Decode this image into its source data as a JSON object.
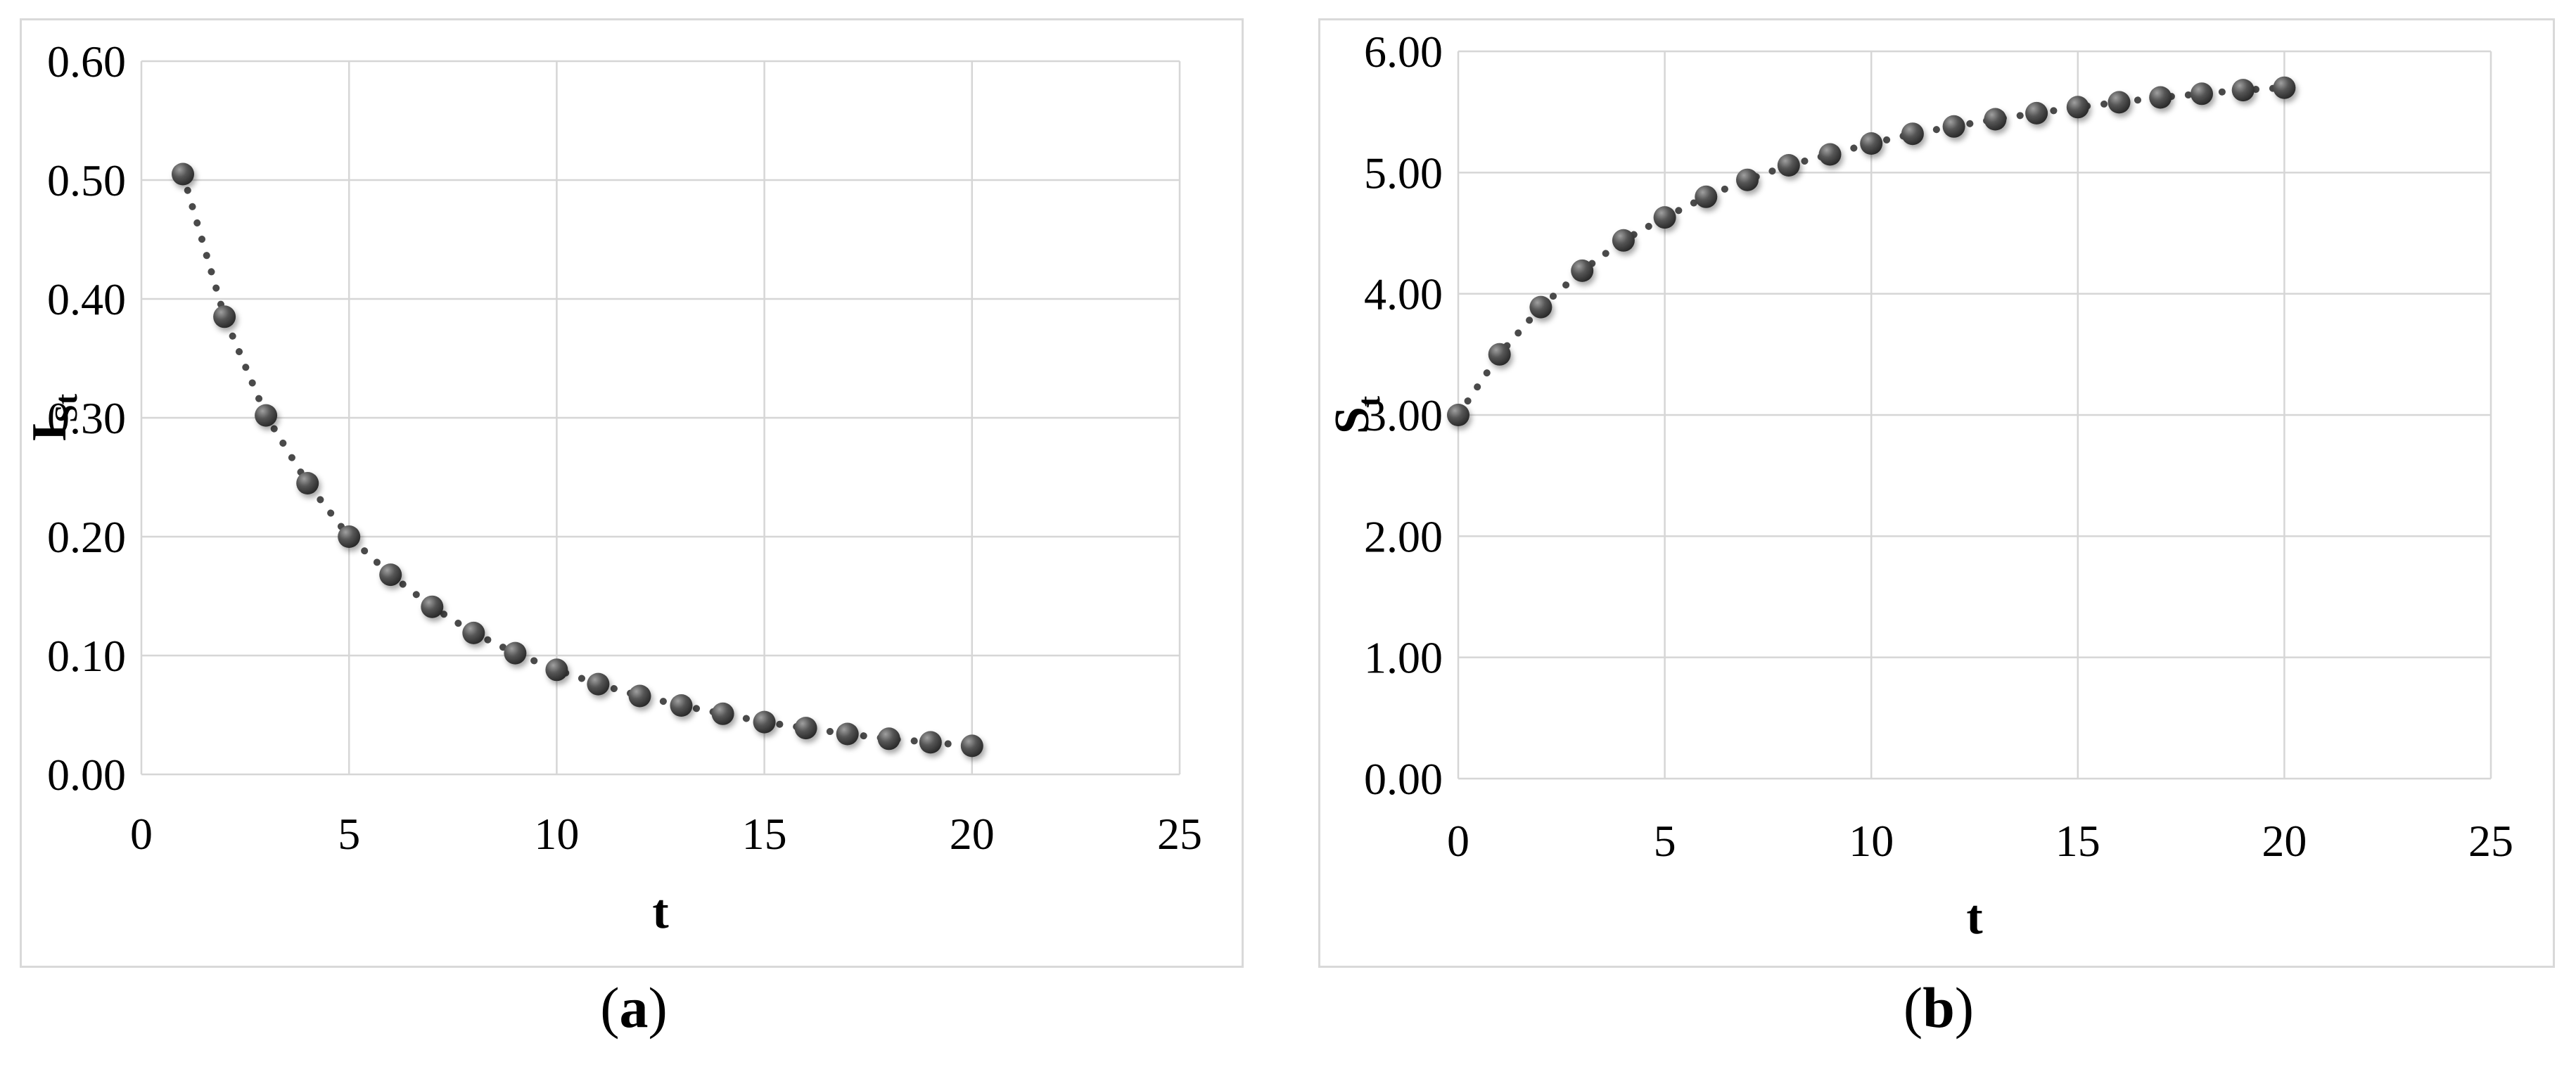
{
  "page": {
    "background": "#ffffff"
  },
  "figures": [
    {
      "caption": {
        "open": "(",
        "letter": "a",
        "close": ")"
      }
    },
    {
      "caption": {
        "open": "(",
        "letter": "b",
        "close": ")"
      }
    }
  ],
  "chart_data": [
    {
      "type": "scatter",
      "title": "",
      "xlabel": "t",
      "ylabel": "I",
      "ylabel_subscript": "St",
      "x": [
        1,
        2,
        3,
        4,
        5,
        6,
        7,
        8,
        9,
        10,
        11,
        12,
        13,
        14,
        15,
        16,
        17,
        18,
        19,
        20
      ],
      "y": [
        0.505,
        0.385,
        0.302,
        0.245,
        0.2,
        0.168,
        0.141,
        0.119,
        0.102,
        0.088,
        0.076,
        0.066,
        0.058,
        0.051,
        0.044,
        0.039,
        0.034,
        0.03,
        0.027,
        0.024
      ],
      "xlim": [
        0,
        25
      ],
      "ylim": [
        0,
        0.6
      ],
      "xticks": [
        0,
        5,
        10,
        15,
        20,
        25
      ],
      "xtick_labels": [
        "0",
        "5",
        "10",
        "15",
        "20",
        "25"
      ],
      "yticks": [
        0,
        0.1,
        0.2,
        0.3,
        0.4,
        0.5,
        0.6
      ],
      "ytick_labels": [
        "0.00",
        "0.10",
        "0.20",
        "0.30",
        "0.40",
        "0.50",
        "0.60"
      ],
      "grid": true,
      "legend": false,
      "line_style": "dotted",
      "marker": "sphere",
      "colors": {
        "marker": "#3f3f3f",
        "marker_highlight": "#a0a0a0",
        "marker_edge": "#262626",
        "line": "#4a4a4a",
        "grid": "#d6d6d6",
        "text": "#000000",
        "box_border": "#d9d9d9"
      }
    },
    {
      "type": "scatter",
      "title": "",
      "xlabel": "t",
      "ylabel": "S",
      "ylabel_subscript": "t",
      "x": [
        0,
        1,
        2,
        3,
        4,
        5,
        6,
        7,
        8,
        9,
        10,
        11,
        12,
        13,
        14,
        15,
        16,
        17,
        18,
        19,
        20
      ],
      "y": [
        3.0,
        3.5,
        3.89,
        4.19,
        4.44,
        4.63,
        4.8,
        4.94,
        5.06,
        5.15,
        5.24,
        5.32,
        5.38,
        5.44,
        5.49,
        5.54,
        5.58,
        5.62,
        5.65,
        5.68,
        5.7
      ],
      "xlim": [
        0,
        25
      ],
      "ylim": [
        0,
        6.0
      ],
      "xticks": [
        0,
        5,
        10,
        15,
        20,
        25
      ],
      "xtick_labels": [
        "0",
        "5",
        "10",
        "15",
        "20",
        "25"
      ],
      "yticks": [
        0,
        1.0,
        2.0,
        3.0,
        4.0,
        5.0,
        6.0
      ],
      "ytick_labels": [
        "0.00",
        "1.00",
        "2.00",
        "3.00",
        "4.00",
        "5.00",
        "6.00"
      ],
      "grid": true,
      "legend": false,
      "line_style": "dotted",
      "marker": "sphere",
      "colors": {
        "marker": "#3f3f3f",
        "marker_highlight": "#a0a0a0",
        "marker_edge": "#262626",
        "line": "#4a4a4a",
        "grid": "#d6d6d6",
        "text": "#000000",
        "box_border": "#d9d9d9"
      }
    }
  ]
}
